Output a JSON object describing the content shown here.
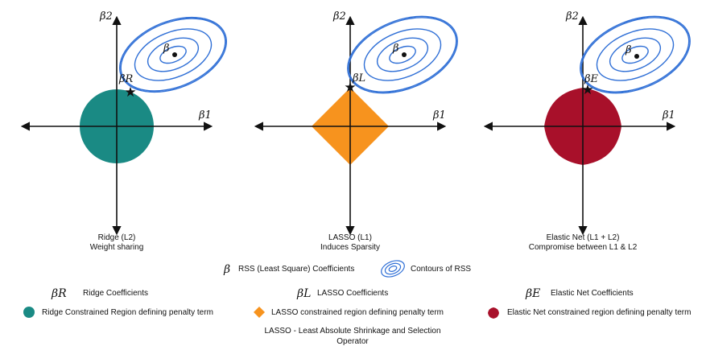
{
  "colors": {
    "ridge": "#1a8a84",
    "lasso": "#f7931e",
    "elastic": "#a8102a",
    "contour": "#2f6fd6",
    "axis": "#111111"
  },
  "icons": [
    "star-icon",
    "contour-icon",
    "circle-icon",
    "diamond-icon",
    "petal-icon"
  ],
  "panels": [
    {
      "id": "ridge",
      "y_axis_label": "β2",
      "x_axis_label": "β1",
      "estimate_label": "β",
      "point_label": "βR",
      "caption_line1": "Ridge (L2)",
      "caption_line2": "Weight sharing"
    },
    {
      "id": "lasso",
      "y_axis_label": "β2",
      "x_axis_label": "β1",
      "estimate_label": "β",
      "point_label": "βL",
      "caption_line1": "LASSO (L1)",
      "caption_line2": "Induces Sparsity"
    },
    {
      "id": "elastic",
      "y_axis_label": "β2",
      "x_axis_label": "β1",
      "estimate_label": "β",
      "point_label": "βE",
      "caption_line1": "Elastic Net (L1 + L2)",
      "caption_line2": "Compromise between L1 & L2"
    }
  ],
  "legend": {
    "rss_symbol": "β",
    "rss_text": "RSS (Least Square) Coefficients",
    "contour_text": "Contours of RSS",
    "ridge_symbol": "βR",
    "ridge_text": "Ridge Coefficients",
    "lasso_symbol": "βL",
    "lasso_text": "LASSO Coefficients",
    "elastic_symbol": "βE",
    "elastic_text": "Elastic Net Coefficients",
    "ridge_region_text": "Ridge Constrained Region defining penalty term",
    "lasso_region_text": "LASSO constrained region defining penalty term",
    "elastic_region_text": "Elastic Net constrained region defining penalty term"
  },
  "footnote_line1": "LASSO - Least Absolute Shrinkage and Selection",
  "footnote_line2": "Operator"
}
